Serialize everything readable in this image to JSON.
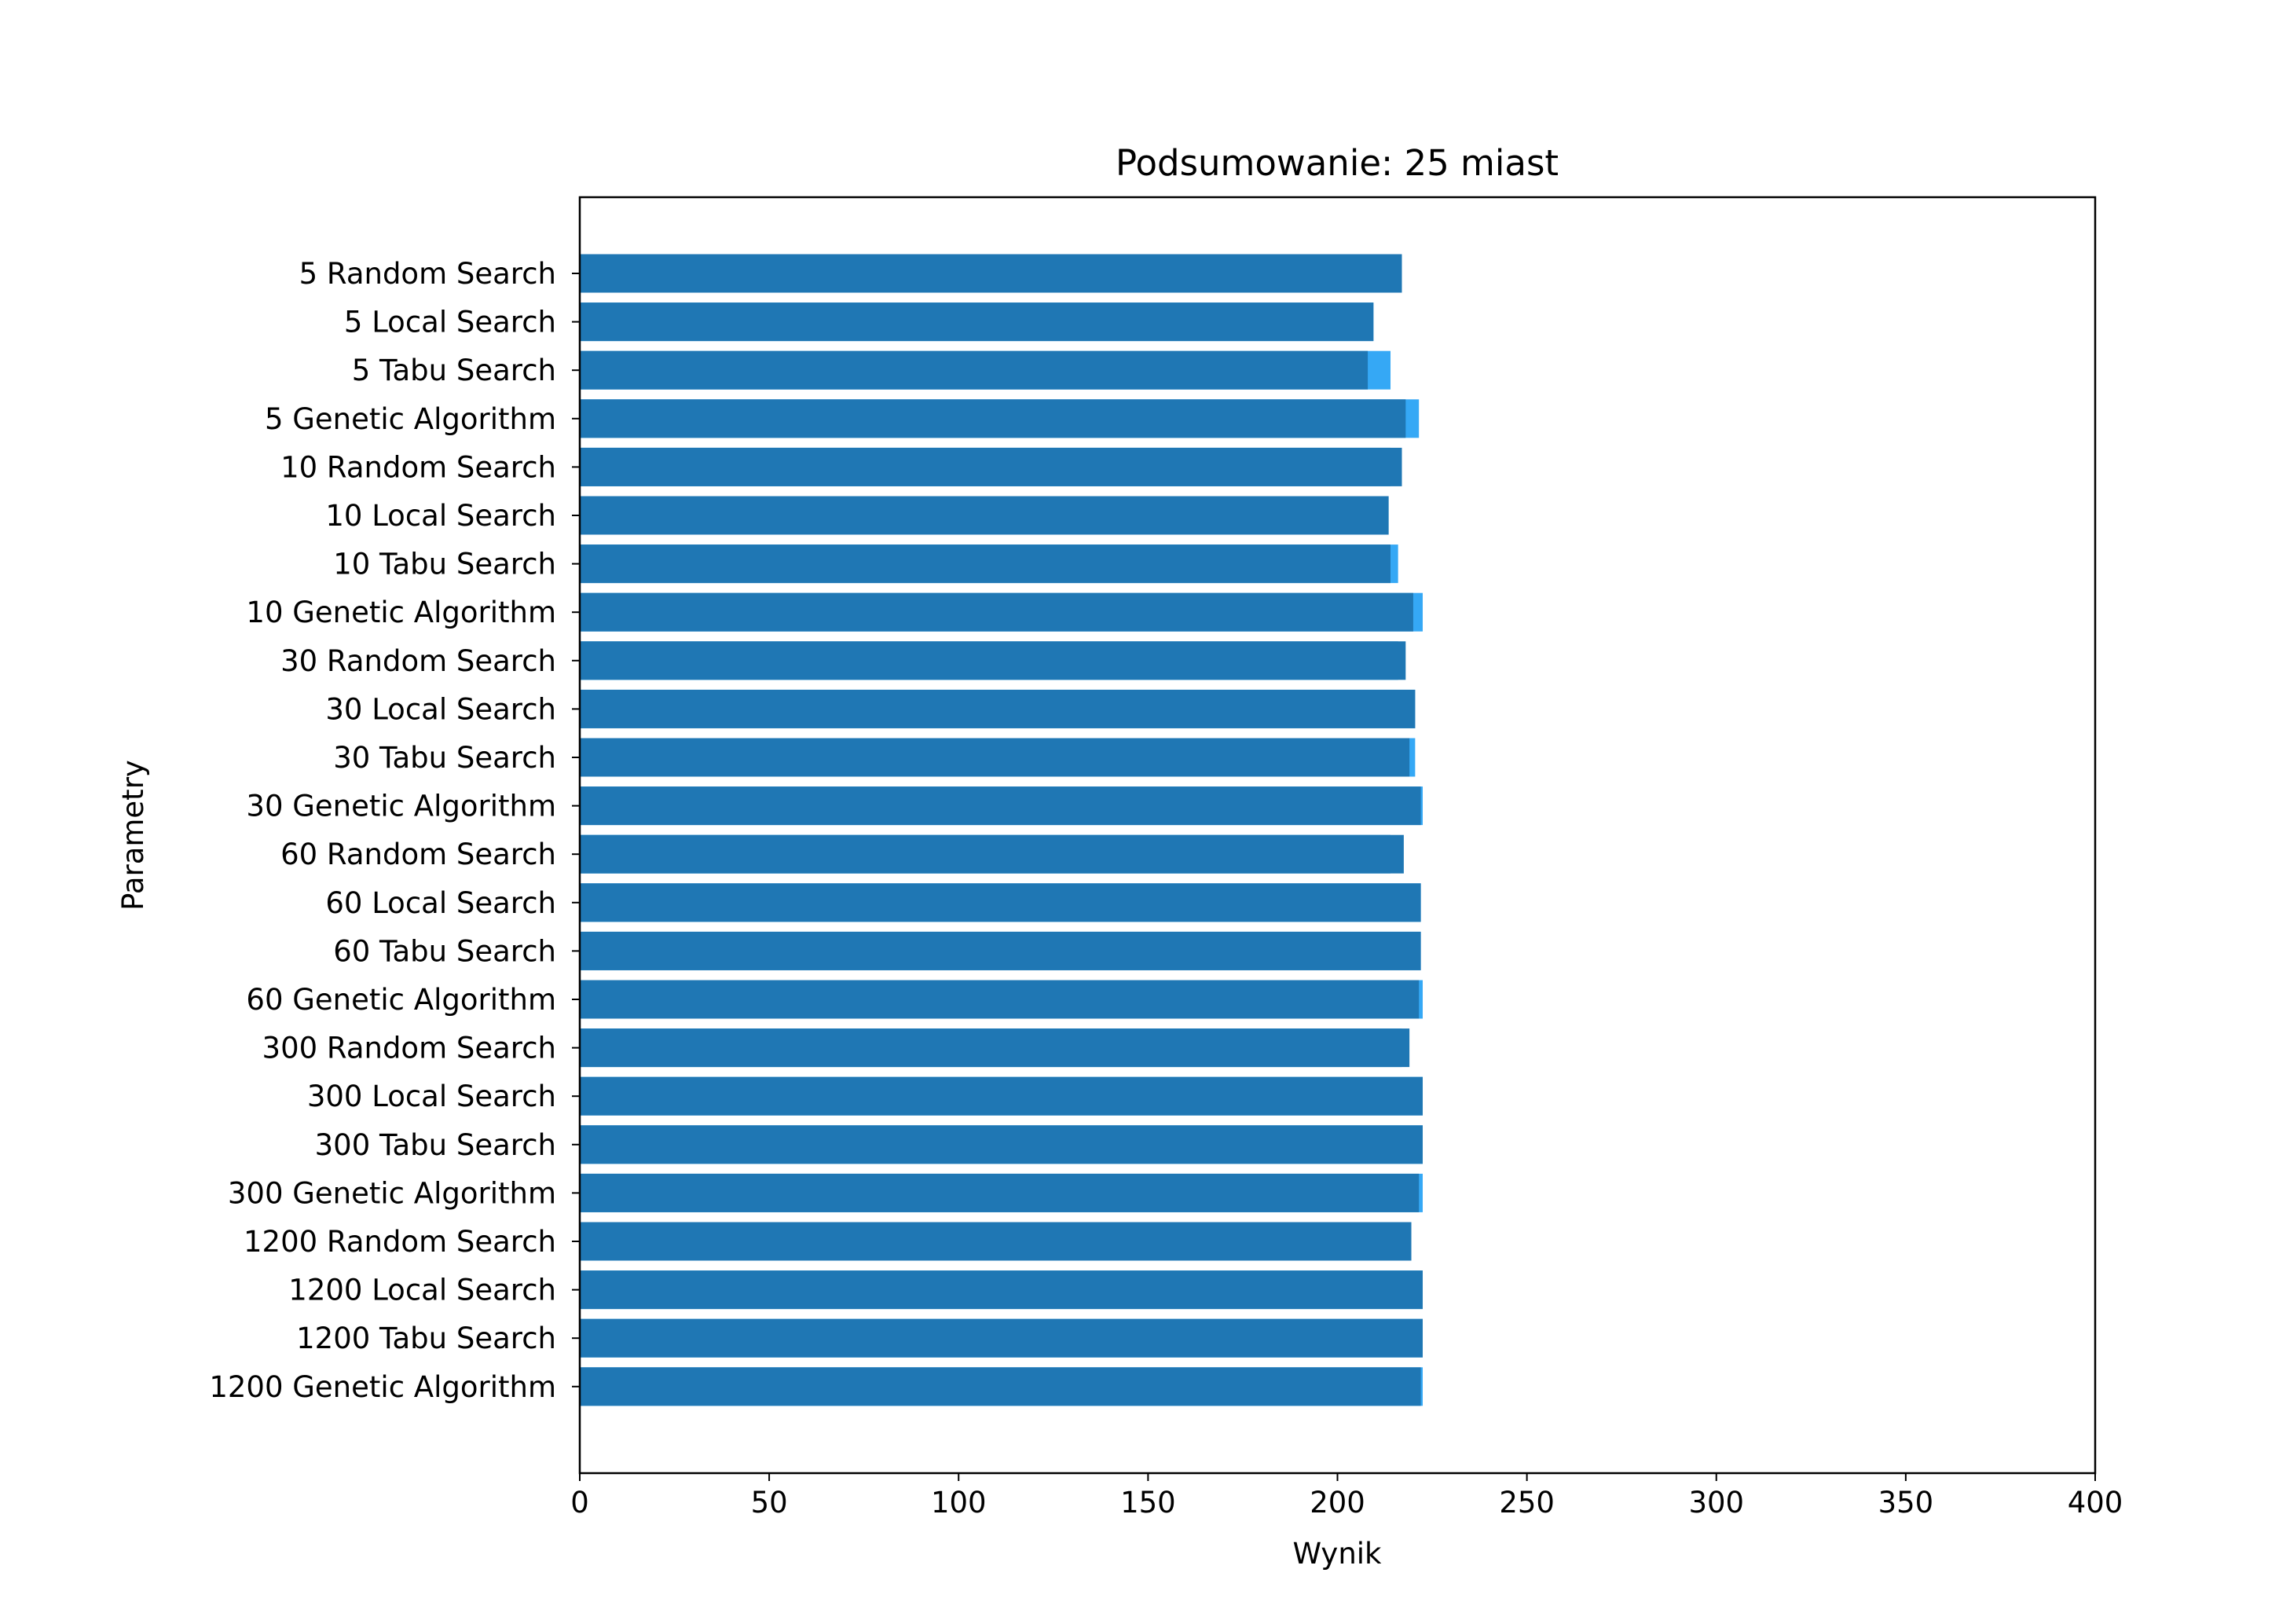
{
  "chart_data": {
    "type": "bar",
    "orientation": "horizontal",
    "title": "Podsumowanie: 25 miast",
    "xlabel": "Wynik",
    "ylabel": "Parametry",
    "xlim": [
      0,
      400
    ],
    "xticks": [
      "0",
      "50",
      "100",
      "150",
      "200",
      "250",
      "300",
      "350",
      "400"
    ],
    "grid": false,
    "legend": "none",
    "colors": {
      "series_dark": "#1f77b4",
      "series_light": "#35a8f5"
    },
    "categories": [
      "5 Random Search",
      "5 Local Search",
      "5 Tabu Search",
      "5 Genetic Algorithm",
      "10 Random Search",
      "10 Local Search",
      "10 Tabu Search",
      "10 Genetic Algorithm",
      "30 Random Search",
      "30 Local Search",
      "30 Tabu Search",
      "30 Genetic Algorithm",
      "60 Random Search",
      "60 Local Search",
      "60 Tabu Search",
      "60 Genetic Algorithm",
      "300 Random Search",
      "300 Local Search",
      "300 Tabu Search",
      "300 Genetic Algorithm",
      "1200 Random Search",
      "1200 Local Search",
      "1200 Tabu Search",
      "1200 Genetic Algorithm"
    ],
    "series": [
      {
        "values": [
          214.5,
          209.5,
          214.0,
          221.5,
          214.0,
          213.5,
          216.0,
          222.5,
          216.0,
          220.5,
          220.5,
          222.5,
          214.0,
          222.0,
          222.0,
          222.5,
          217.0,
          222.5,
          222.5,
          222.5,
          217.0,
          222.5,
          222.5,
          222.5
        ]
      },
      {
        "values": [
          217.0,
          209.5,
          208.0,
          218.0,
          217.0,
          213.5,
          214.0,
          220.0,
          218.0,
          220.5,
          219.0,
          222.0,
          217.5,
          222.0,
          222.0,
          221.5,
          219.0,
          222.5,
          222.5,
          221.5,
          219.5,
          222.5,
          222.5,
          222.0
        ]
      }
    ]
  }
}
